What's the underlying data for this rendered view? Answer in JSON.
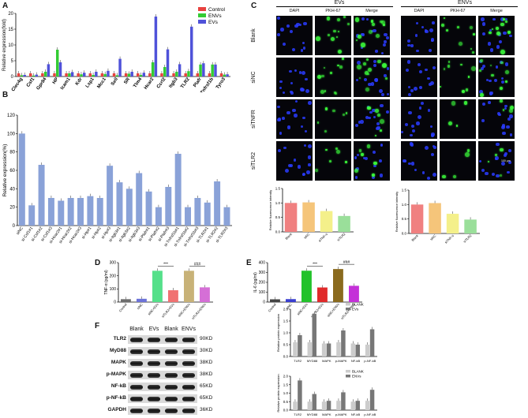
{
  "panels": {
    "a": "A",
    "b": "B",
    "c": "C",
    "d": "D",
    "e": "E",
    "f": "F"
  },
  "chart_data": [
    {
      "id": "A",
      "type": "bar",
      "ylabel": "Relative expression(fold)",
      "ylim": [
        0,
        20
      ],
      "yticks": [
        "0",
        "5",
        "10",
        "15",
        "20"
      ],
      "categories": [
        "Clec4g",
        "Csf1",
        "Gpr84",
        "HP",
        "Icam1",
        "Kdr",
        "Lsp1",
        "Mcc1",
        "Sell",
        "SR",
        "Tlm4",
        "Hcar2",
        "Ccrl2",
        "Itgb3",
        "TLR2",
        "Plafr",
        "Tnfrsf1b",
        "Tyro3"
      ],
      "series": [
        {
          "name": "Control",
          "color": "#e8423f",
          "values": [
            1,
            1,
            1,
            1,
            1,
            1,
            1,
            1,
            1,
            1,
            1,
            1,
            1,
            1,
            1,
            1,
            1,
            1
          ]
        },
        {
          "name": "ENVs",
          "color": "#33cc33",
          "values": [
            0.4,
            0.3,
            1.5,
            8.5,
            1.0,
            0.7,
            0.5,
            0.8,
            0.4,
            0.9,
            0.5,
            4.5,
            3.0,
            1.5,
            1.7,
            3.8,
            3.8,
            0.6
          ]
        },
        {
          "name": "EVs",
          "color": "#4f52d9",
          "values": [
            0.5,
            0.6,
            3.9,
            4.5,
            1.4,
            1.2,
            1.5,
            1.8,
            5.6,
            1.5,
            1.2,
            19.0,
            8.6,
            3.9,
            15.8,
            4.2,
            3.8,
            0.7
          ]
        }
      ]
    },
    {
      "id": "B",
      "type": "bar",
      "ylabel": "Relative expression(%)",
      "ylim": [
        0,
        120
      ],
      "yticks": [
        "0",
        "20",
        "40",
        "60",
        "80",
        "100",
        "120"
      ],
      "categories": [
        "siNC",
        "si-Csf1#1",
        "si-Csf1#2",
        "si-Csf1#3",
        "si-Hcar2#1",
        "si-Hcar2#2",
        "si-Hcar2#3",
        "si-Hp#1",
        "si-Hp#2",
        "si-Hp#3",
        "si-Itgb3#1",
        "si-Itgb3#2",
        "si-Itgb3#3",
        "si-Plafr#1",
        "si-Plafr#2",
        "si-Plafr#3",
        "si-Tnfrsf1b#1",
        "si-Tnfrsf1b#2",
        "si-Tnfrsf1b#3",
        "si-TLR2#1",
        "si-TLR2#2",
        "si-TLR2#3"
      ],
      "color": "#8aa2d8",
      "values": [
        100,
        22,
        66,
        30,
        27,
        30,
        30,
        32,
        30,
        65,
        47,
        40,
        57,
        37,
        20,
        42,
        78,
        20,
        30,
        25,
        48,
        20
      ]
    },
    {
      "id": "C-left",
      "type": "bar",
      "ylabel": "Relative fluorescence intensity",
      "ylim": [
        0,
        1.5
      ],
      "yticks": [
        "0.0",
        "0.5",
        "1.0",
        "1.5"
      ],
      "categories": [
        "Blank",
        "siNC",
        "siTNF-α",
        "siTLR2"
      ],
      "colors": [
        "#f08080",
        "#f5c57a",
        "#f4f08a",
        "#9adf9a"
      ],
      "values": [
        1.0,
        1.02,
        0.72,
        0.55
      ]
    },
    {
      "id": "C-right",
      "type": "bar",
      "ylabel": "Relative fluorescence intensity",
      "ylim": [
        0,
        1.5
      ],
      "yticks": [
        "0.0",
        "0.5",
        "1.0",
        "1.5"
      ],
      "categories": [
        "Blank",
        "siNC",
        "siTNF-α",
        "siTLR2"
      ],
      "colors": [
        "#f08080",
        "#f5c57a",
        "#f4f08a",
        "#9adf9a"
      ],
      "values": [
        1.0,
        1.05,
        0.68,
        0.48
      ]
    },
    {
      "id": "D",
      "type": "bar",
      "ylabel": "TNF-α (pg/ml)",
      "ylim": [
        0,
        300
      ],
      "yticks": [
        "0",
        "100",
        "200",
        "300"
      ],
      "categories": [
        "Control",
        "siNC",
        "siNC+EVs",
        "siTLR2+EVs",
        "siNC+ENVs",
        "siTLR2+ENVs"
      ],
      "colors": [
        "#6d6d6d",
        "#6d73d8",
        "#55e08a",
        "#f07272",
        "#c8b278",
        "#d56fd6"
      ],
      "values": [
        22,
        25,
        238,
        90,
        238,
        112
      ],
      "annotations": [
        "***",
        "###"
      ]
    },
    {
      "id": "E",
      "type": "bar",
      "ylabel": "IL-6 (pg/ml)",
      "ylim": [
        0,
        400
      ],
      "yticks": [
        "0",
        "100",
        "200",
        "300",
        "400"
      ],
      "categories": [
        "Control",
        "siNC",
        "siNC+EVs",
        "siTLR2+EVs",
        "siNC+ENVs",
        "siTLR2+ENVs"
      ],
      "colors": [
        "#444444",
        "#3a3fd0",
        "#22c22a",
        "#e02a2a",
        "#8a6a1e",
        "#c431d8"
      ],
      "values": [
        28,
        30,
        318,
        148,
        335,
        165
      ],
      "annotations": [
        "***",
        "###"
      ]
    },
    {
      "id": "F-top",
      "type": "bar",
      "ylabel": "Relative protein expression",
      "ylim": [
        0,
        2.0
      ],
      "yticks": [
        "0.0",
        "0.5",
        "1.0",
        "1.5",
        "2.0"
      ],
      "categories": [
        "TLR2",
        "MYD88",
        "MAPK",
        "p-MAPK",
        "NF-kB",
        "p-NF-kB"
      ],
      "series": [
        {
          "name": "BLANK",
          "color": "#cccccc",
          "values": [
            0.6,
            0.6,
            0.55,
            0.6,
            0.55,
            0.5
          ]
        },
        {
          "name": "EVs",
          "color": "#777777",
          "values": [
            0.9,
            1.8,
            0.55,
            1.1,
            0.5,
            1.15
          ]
        }
      ]
    },
    {
      "id": "F-bottom",
      "type": "bar",
      "ylabel": "Relative protein expression",
      "ylim": [
        0,
        2.0
      ],
      "yticks": [
        "0.0",
        "0.5",
        "1.0",
        "1.5",
        "2.0"
      ],
      "categories": [
        "TLR2",
        "MYD88",
        "MAPK",
        "p-MAPK",
        "NF-kB",
        "p-NF-kB"
      ],
      "series": [
        {
          "name": "BLANK",
          "color": "#cccccc",
          "values": [
            0.5,
            0.5,
            0.5,
            0.55,
            0.5,
            0.55
          ]
        },
        {
          "name": "ENVs",
          "color": "#777777",
          "values": [
            1.75,
            0.95,
            0.55,
            1.05,
            0.55,
            1.2
          ]
        }
      ]
    }
  ],
  "micro": {
    "group_evs": "EVs",
    "group_envs": "ENVs",
    "cols": [
      "DAPI",
      "PKH-67",
      "Merge"
    ],
    "rows": [
      "Blank",
      "siNC",
      "siTNFR",
      "siTLR2"
    ],
    "scale": "100 μm"
  },
  "blot": {
    "cols": [
      "Blank",
      "EVs",
      "Blank",
      "ENVs"
    ],
    "rows": [
      {
        "label": "TLR2",
        "size": "90KD"
      },
      {
        "label": "MyD88",
        "size": "30KD"
      },
      {
        "label": "MAPK",
        "size": "38KD"
      },
      {
        "label": "p-MAPK",
        "size": "38KD"
      },
      {
        "label": "NF-kB",
        "size": "65KD"
      },
      {
        "label": "p-NF-kB",
        "size": "65KD"
      },
      {
        "label": "GAPDH",
        "size": "36KD"
      }
    ]
  }
}
